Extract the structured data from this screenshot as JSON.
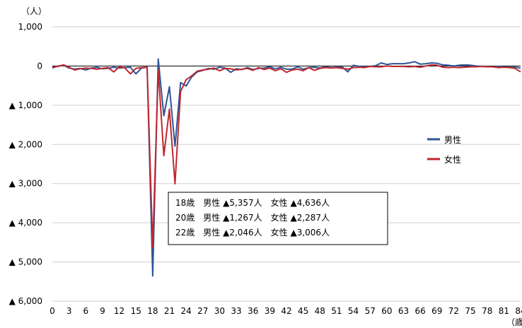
{
  "chart_data": {
    "type": "line",
    "y_unit_label": "（人）",
    "x_unit_label": "（歳）",
    "ylim": [
      -6000,
      1000
    ],
    "y_ticks": [
      {
        "value": 1000,
        "label": "1,000"
      },
      {
        "value": 0,
        "label": "0"
      },
      {
        "value": -1000,
        "label": "▲ 1,000"
      },
      {
        "value": -2000,
        "label": "▲ 2,000"
      },
      {
        "value": -3000,
        "label": "▲ 3,000"
      },
      {
        "value": -4000,
        "label": "▲ 4,000"
      },
      {
        "value": -5000,
        "label": "▲ 5,000"
      },
      {
        "value": -6000,
        "label": "▲ 6,000"
      }
    ],
    "xlim": [
      0,
      84
    ],
    "x_ticks": [
      0,
      3,
      6,
      9,
      12,
      15,
      18,
      21,
      24,
      27,
      30,
      33,
      36,
      39,
      42,
      45,
      48,
      51,
      54,
      57,
      60,
      63,
      66,
      69,
      72,
      75,
      78,
      81,
      84
    ],
    "grid": "horizontal",
    "legend_position": "right",
    "series": [
      {
        "name": "男性",
        "color": "#2e5597",
        "points": [
          [
            0,
            -50
          ],
          [
            1,
            0
          ],
          [
            2,
            20
          ],
          [
            3,
            -50
          ],
          [
            4,
            -80
          ],
          [
            5,
            -60
          ],
          [
            6,
            -100
          ],
          [
            7,
            -50
          ],
          [
            8,
            -30
          ],
          [
            9,
            -70
          ],
          [
            10,
            -60
          ],
          [
            11,
            -30
          ],
          [
            12,
            -50
          ],
          [
            13,
            -40
          ],
          [
            14,
            -30
          ],
          [
            15,
            -200
          ],
          [
            16,
            -50
          ],
          [
            17,
            -30
          ],
          [
            18,
            -5357
          ],
          [
            19,
            180
          ],
          [
            20,
            -1267
          ],
          [
            21,
            -530
          ],
          [
            22,
            -2046
          ],
          [
            23,
            -420
          ],
          [
            24,
            -510
          ],
          [
            25,
            -280
          ],
          [
            26,
            -150
          ],
          [
            27,
            -110
          ],
          [
            28,
            -60
          ],
          [
            29,
            -80
          ],
          [
            30,
            -30
          ],
          [
            31,
            -50
          ],
          [
            32,
            -160
          ],
          [
            33,
            -70
          ],
          [
            34,
            -90
          ],
          [
            35,
            -40
          ],
          [
            36,
            -90
          ],
          [
            37,
            -60
          ],
          [
            38,
            -50
          ],
          [
            39,
            -20
          ],
          [
            40,
            -70
          ],
          [
            41,
            -30
          ],
          [
            42,
            -80
          ],
          [
            43,
            -80
          ],
          [
            44,
            -20
          ],
          [
            45,
            -80
          ],
          [
            46,
            -40
          ],
          [
            47,
            -30
          ],
          [
            48,
            -50
          ],
          [
            49,
            -20
          ],
          [
            50,
            -40
          ],
          [
            51,
            -30
          ],
          [
            52,
            -20
          ],
          [
            53,
            -150
          ],
          [
            54,
            20
          ],
          [
            55,
            -10
          ],
          [
            56,
            -20
          ],
          [
            57,
            -10
          ],
          [
            58,
            10
          ],
          [
            59,
            80
          ],
          [
            60,
            40
          ],
          [
            61,
            60
          ],
          [
            62,
            60
          ],
          [
            63,
            60
          ],
          [
            64,
            80
          ],
          [
            65,
            110
          ],
          [
            66,
            50
          ],
          [
            67,
            60
          ],
          [
            68,
            80
          ],
          [
            69,
            70
          ],
          [
            70,
            30
          ],
          [
            71,
            20
          ],
          [
            72,
            0
          ],
          [
            73,
            20
          ],
          [
            74,
            30
          ],
          [
            75,
            20
          ],
          [
            76,
            0
          ],
          [
            77,
            -10
          ],
          [
            78,
            -10
          ],
          [
            79,
            -20
          ],
          [
            80,
            -10
          ],
          [
            81,
            -20
          ],
          [
            82,
            -30
          ],
          [
            83,
            -30
          ],
          [
            84,
            -50
          ]
        ]
      },
      {
        "name": "女性",
        "color": "#c0272d",
        "points": [
          [
            0,
            -30
          ],
          [
            1,
            -10
          ],
          [
            2,
            30
          ],
          [
            3,
            -30
          ],
          [
            4,
            -100
          ],
          [
            5,
            -70
          ],
          [
            6,
            -50
          ],
          [
            7,
            -60
          ],
          [
            8,
            -80
          ],
          [
            9,
            -60
          ],
          [
            10,
            -40
          ],
          [
            11,
            -150
          ],
          [
            12,
            -20
          ],
          [
            13,
            -50
          ],
          [
            14,
            -200
          ],
          [
            15,
            -60
          ],
          [
            16,
            -40
          ],
          [
            17,
            -30
          ],
          [
            18,
            -4636
          ],
          [
            19,
            -100
          ],
          [
            20,
            -2287
          ],
          [
            21,
            -1100
          ],
          [
            22,
            -3006
          ],
          [
            23,
            -650
          ],
          [
            24,
            -350
          ],
          [
            25,
            -250
          ],
          [
            26,
            -130
          ],
          [
            27,
            -100
          ],
          [
            28,
            -80
          ],
          [
            29,
            -50
          ],
          [
            30,
            -120
          ],
          [
            31,
            -60
          ],
          [
            32,
            -70
          ],
          [
            33,
            -100
          ],
          [
            34,
            -80
          ],
          [
            35,
            -60
          ],
          [
            36,
            -110
          ],
          [
            37,
            -40
          ],
          [
            38,
            -90
          ],
          [
            39,
            -50
          ],
          [
            40,
            -120
          ],
          [
            41,
            -70
          ],
          [
            42,
            -160
          ],
          [
            43,
            -100
          ],
          [
            44,
            -80
          ],
          [
            45,
            -120
          ],
          [
            46,
            -40
          ],
          [
            47,
            -110
          ],
          [
            48,
            -60
          ],
          [
            49,
            -40
          ],
          [
            50,
            -50
          ],
          [
            51,
            -40
          ],
          [
            52,
            -60
          ],
          [
            53,
            -80
          ],
          [
            54,
            -40
          ],
          [
            55,
            -30
          ],
          [
            56,
            -40
          ],
          [
            57,
            -10
          ],
          [
            58,
            -20
          ],
          [
            59,
            -20
          ],
          [
            60,
            0
          ],
          [
            61,
            -10
          ],
          [
            62,
            -10
          ],
          [
            63,
            -10
          ],
          [
            64,
            -20
          ],
          [
            65,
            -10
          ],
          [
            66,
            -30
          ],
          [
            67,
            0
          ],
          [
            68,
            30
          ],
          [
            69,
            20
          ],
          [
            70,
            -30
          ],
          [
            71,
            -40
          ],
          [
            72,
            -30
          ],
          [
            73,
            -40
          ],
          [
            74,
            -30
          ],
          [
            75,
            -20
          ],
          [
            76,
            -20
          ],
          [
            77,
            -10
          ],
          [
            78,
            -20
          ],
          [
            79,
            -20
          ],
          [
            80,
            -40
          ],
          [
            81,
            -30
          ],
          [
            82,
            -40
          ],
          [
            83,
            -60
          ],
          [
            84,
            -150
          ]
        ]
      }
    ],
    "annotation_lines": [
      "18歳　男性 ▲5,357人　女性 ▲4,636人",
      "20歳　男性 ▲1,267人　女性 ▲2,287人",
      "22歳　男性 ▲2,046人　女性 ▲3,006人"
    ]
  }
}
